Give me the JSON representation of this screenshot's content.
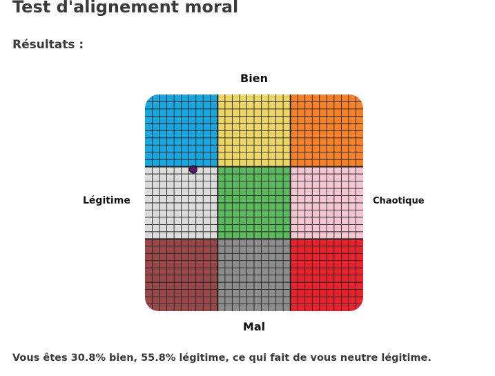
{
  "page": {
    "title": "Test d'alignement moral",
    "results_heading": "Résultats :"
  },
  "chart": {
    "label_top": "Bien",
    "label_bottom": "Mal",
    "label_left": "Légitime",
    "label_right": "Chaotique",
    "cells": [
      {
        "color": "#1aa7e0"
      },
      {
        "color": "#ecd567"
      },
      {
        "color": "#f5822a"
      },
      {
        "color": "#dcdcdc"
      },
      {
        "color": "#5cb85c"
      },
      {
        "color": "#f4c6d2"
      },
      {
        "color": "#984848"
      },
      {
        "color": "#8c8c8c"
      },
      {
        "color": "#e8232d"
      }
    ],
    "marker": {
      "color": "#5a1a66",
      "good_percent": 30.8,
      "lawful_percent": 55.8
    }
  },
  "result": {
    "text": "Vous êtes 30.8% bien, 55.8% légitime, ce qui fait de vous neutre légitime."
  }
}
